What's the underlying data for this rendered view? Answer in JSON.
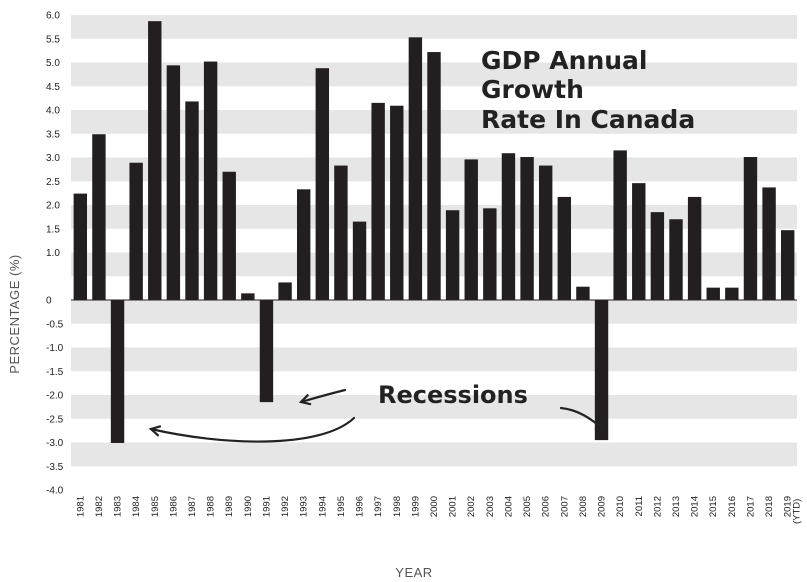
{
  "chart_data": {
    "type": "bar",
    "title_lines": [
      "GDP Annual",
      "Growth",
      "Rate In Canada"
    ],
    "xlabel": "YEAR",
    "ylabel": "PERCENTAGE (%)",
    "ylim": [
      -4.0,
      6.0
    ],
    "y_ticks": [
      "6.0",
      "5.5",
      "5.0",
      "4.5",
      "4.0",
      "3.5",
      "3.0",
      "2.5",
      "2.0",
      "1.5",
      "1.0",
      "0",
      "-0.5",
      "-1.0",
      "-1.5",
      "-2.0",
      "-2.5",
      "-3.0",
      "-3.5",
      "-4.0"
    ],
    "categories": [
      "1981",
      "1982",
      "1983",
      "1984",
      "1985",
      "1986",
      "1987",
      "1988",
      "1989",
      "1990",
      "1991",
      "1992",
      "1993",
      "1994",
      "1995",
      "1996",
      "1997",
      "1998",
      "1999",
      "2000",
      "2001",
      "2002",
      "2003",
      "2004",
      "2005",
      "2006",
      "2007",
      "2008",
      "2009",
      "2010",
      "2011",
      "2012",
      "2013",
      "2014",
      "2015",
      "2016",
      "2017",
      "2018",
      "2019"
    ],
    "last_category_suffix": "(YTD)",
    "values": [
      2.24,
      3.49,
      -3.01,
      2.89,
      5.87,
      4.94,
      4.18,
      5.02,
      2.7,
      0.14,
      -2.15,
      0.37,
      2.33,
      4.88,
      2.83,
      1.65,
      4.15,
      4.09,
      5.53,
      5.22,
      1.89,
      2.96,
      1.93,
      3.09,
      3.01,
      2.83,
      2.17,
      0.28,
      -2.95,
      3.15,
      2.46,
      1.85,
      1.7,
      2.17,
      0.26,
      0.26,
      3.01,
      2.37,
      1.47
    ],
    "annotation": "Recessions",
    "grid": "alternating horizontal bands",
    "bar_color": "#231f20",
    "band_color": "#e6e6e6"
  }
}
